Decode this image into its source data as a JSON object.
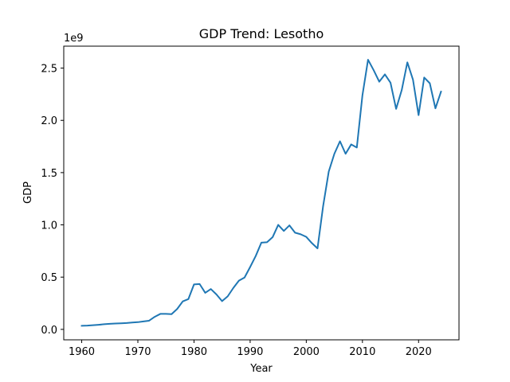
{
  "chart_data": {
    "type": "line",
    "title": "GDP Trend: Lesotho",
    "xlabel": "Year",
    "ylabel": "GDP",
    "y_offset_label": "1e9",
    "xlim": [
      1956.8,
      2027.2
    ],
    "ylim": [
      -0.1,
      2.71
    ],
    "x_ticks": [
      1960,
      1970,
      1980,
      1990,
      2000,
      2010,
      2020
    ],
    "y_ticks": [
      0.0,
      0.5,
      1.0,
      1.5,
      2.0,
      2.5
    ],
    "y_tick_labels": [
      "0.0",
      "0.5",
      "1.0",
      "1.5",
      "2.0",
      "2.5"
    ],
    "grid": false,
    "series": [
      {
        "color": "#1f77b4",
        "x": [
          1960,
          1961,
          1962,
          1963,
          1964,
          1965,
          1966,
          1967,
          1968,
          1969,
          1970,
          1971,
          1972,
          1973,
          1974,
          1975,
          1976,
          1977,
          1978,
          1979,
          1980,
          1981,
          1982,
          1983,
          1984,
          1985,
          1986,
          1987,
          1988,
          1989,
          1990,
          1991,
          1992,
          1993,
          1994,
          1995,
          1996,
          1997,
          1998,
          1999,
          2000,
          2001,
          2002,
          2003,
          2004,
          2005,
          2006,
          2007,
          2008,
          2009,
          2010,
          2011,
          2012,
          2013,
          2014,
          2015,
          2016,
          2017,
          2018,
          2019,
          2020,
          2021,
          2022,
          2023,
          2024
        ],
        "y": [
          0.034,
          0.036,
          0.04,
          0.044,
          0.049,
          0.053,
          0.056,
          0.058,
          0.061,
          0.066,
          0.069,
          0.076,
          0.083,
          0.12,
          0.148,
          0.148,
          0.146,
          0.195,
          0.268,
          0.29,
          0.43,
          0.434,
          0.35,
          0.386,
          0.334,
          0.27,
          0.316,
          0.396,
          0.466,
          0.496,
          0.597,
          0.703,
          0.83,
          0.834,
          0.882,
          1.0,
          0.942,
          0.995,
          0.925,
          0.91,
          0.885,
          0.825,
          0.775,
          1.18,
          1.51,
          1.68,
          1.8,
          1.68,
          1.77,
          1.74,
          2.24,
          2.58,
          2.48,
          2.37,
          2.44,
          2.36,
          2.11,
          2.29,
          2.555,
          2.39,
          2.05,
          2.41,
          2.355,
          2.115,
          2.275
        ]
      }
    ]
  }
}
